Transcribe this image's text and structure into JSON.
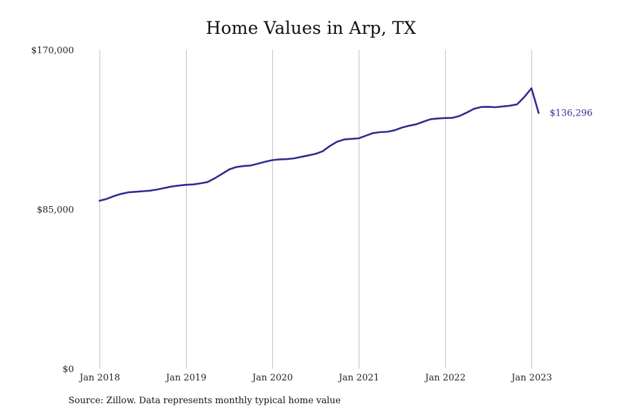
{
  "chart_data": {
    "type": "line",
    "title": "Home Values in Arp, TX",
    "xlabel": "",
    "ylabel": "",
    "ylim": [
      0,
      170000
    ],
    "xlim": [
      "2018-01",
      "2023-04"
    ],
    "y_ticks": [
      {
        "value": 0,
        "label": "$0"
      },
      {
        "value": 85000,
        "label": "$85,000"
      },
      {
        "value": 170000,
        "label": "$170,000"
      }
    ],
    "x_ticks": [
      {
        "value": "2018-01",
        "label": "Jan 2018"
      },
      {
        "value": "2019-01",
        "label": "Jan 2019"
      },
      {
        "value": "2020-01",
        "label": "Jan 2020"
      },
      {
        "value": "2021-01",
        "label": "Jan 2021"
      },
      {
        "value": "2022-01",
        "label": "Jan 2022"
      },
      {
        "value": "2023-01",
        "label": "Jan 2023"
      }
    ],
    "grid": {
      "vertical": true,
      "horizontal": false
    },
    "line_color": "#2e2c8f",
    "grid_color": "#c4c4c4",
    "end_label": "$136,296",
    "series": [
      {
        "x": [
          "2018-01",
          "2018-02",
          "2018-03",
          "2018-04",
          "2018-05",
          "2018-06",
          "2018-07",
          "2018-08",
          "2018-09",
          "2018-10",
          "2018-11",
          "2018-12",
          "2019-01",
          "2019-02",
          "2019-03",
          "2019-04",
          "2019-05",
          "2019-06",
          "2019-07",
          "2019-08",
          "2019-09",
          "2019-10",
          "2019-11",
          "2019-12",
          "2020-01",
          "2020-02",
          "2020-03",
          "2020-04",
          "2020-05",
          "2020-06",
          "2020-07",
          "2020-08",
          "2020-09",
          "2020-10",
          "2020-11",
          "2020-12",
          "2021-01",
          "2021-02",
          "2021-03",
          "2021-04",
          "2021-05",
          "2021-06",
          "2021-07",
          "2021-08",
          "2021-09",
          "2021-10",
          "2021-11",
          "2021-12",
          "2022-01",
          "2022-02",
          "2022-03",
          "2022-04",
          "2022-05",
          "2022-06",
          "2022-07",
          "2022-08",
          "2022-09",
          "2022-10",
          "2022-11",
          "2022-12",
          "2023-01",
          "2023-02"
        ],
        "values": [
          89500,
          90500,
          92000,
          93200,
          94000,
          94300,
          94600,
          94900,
          95500,
          96300,
          97100,
          97600,
          98000,
          98200,
          98800,
          99500,
          101500,
          103800,
          106200,
          107500,
          108000,
          108300,
          109300,
          110300,
          111200,
          111600,
          111700,
          112100,
          112900,
          113700,
          114500,
          115900,
          118700,
          121000,
          122200,
          122500,
          122800,
          124200,
          125600,
          126100,
          126300,
          127100,
          128500,
          129500,
          130300,
          131700,
          133000,
          133400,
          133600,
          133700,
          134700,
          136500,
          138500,
          139500,
          139600,
          139400,
          139800,
          140200,
          140900,
          144800,
          149500,
          136296
        ]
      }
    ]
  },
  "source_note": "Source: Zillow. Data represents monthly typical home value"
}
